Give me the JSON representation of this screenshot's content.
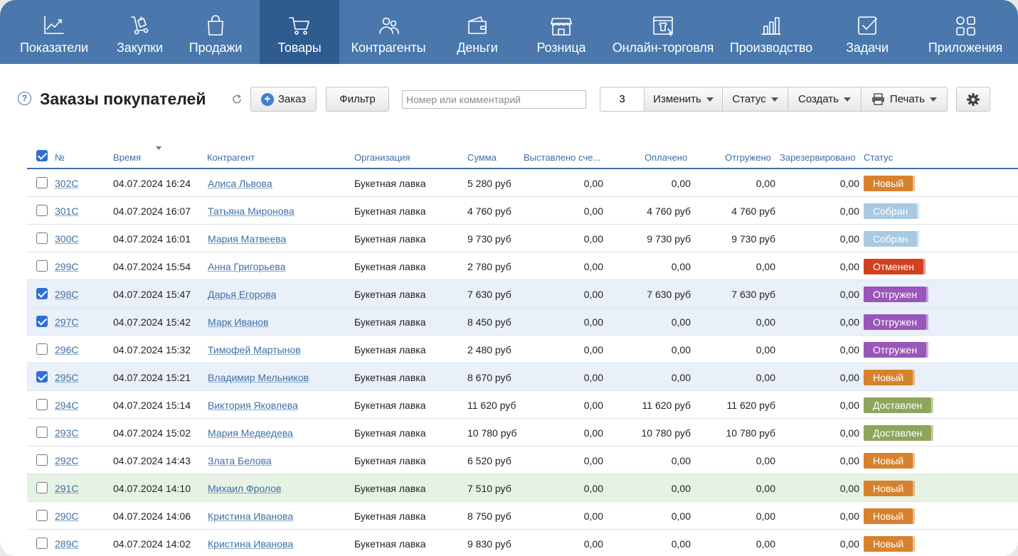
{
  "nav": [
    {
      "label": "Показатели",
      "icon": "chart-line-icon",
      "width": 152
    },
    {
      "label": "Закупки",
      "icon": "cart-dolly-icon",
      "width": 89
    },
    {
      "label": "Продажи",
      "icon": "shopping-bag-icon",
      "width": 124
    },
    {
      "label": "Товары",
      "icon": "shopping-cart-icon",
      "width": 112,
      "active": true
    },
    {
      "label": "Контрагенты",
      "icon": "people-icon",
      "width": 138
    },
    {
      "label": "Деньги",
      "icon": "wallet-icon",
      "width": 112
    },
    {
      "label": "Розница",
      "icon": "store-icon",
      "width": 124
    },
    {
      "label": "Онлайн-торговля",
      "icon": "online-shop-icon",
      "width": 162
    },
    {
      "label": "Производство",
      "icon": "bar-chart-icon",
      "width": 142
    },
    {
      "label": "Задачи",
      "icon": "checkbox-task-icon",
      "width": 128
    },
    {
      "label": "Приложения",
      "icon": "apps-grid-icon",
      "width": 148
    }
  ],
  "toolbar": {
    "title": "Заказы покупателей",
    "order_btn": "Заказ",
    "filter_btn": "Фильтр",
    "search_placeholder": "Номер или комментарий",
    "selected_count": "3",
    "edit_btn": "Изменить",
    "status_btn": "Статус",
    "create_btn": "Создать",
    "print_btn": "Печать"
  },
  "columns": {
    "num": "№",
    "time": "Время",
    "counterparty": "Контрагент",
    "organization": "Организация",
    "sum": "Сумма",
    "invoiced": "Выставлено сче...",
    "paid": "Оплачено",
    "shipped": "Отгружено",
    "reserved": "Зарезервировано",
    "status": "Статус"
  },
  "status_colors": {
    "Новый": "#d8812c",
    "Собран": "#a7c9e2",
    "Отменен": "#d2401f",
    "Отгружен": "#9a56b8",
    "Доставлен": "#8ea55d"
  },
  "rows": [
    {
      "num": "302C",
      "time": "04.07.2024 16:24",
      "counterparty": "Алиса Львова",
      "org": "Букетная лавка",
      "sum": "5 280 руб",
      "invoiced": "0,00",
      "paid": "0,00",
      "shipped": "0,00",
      "reserved": "0,00",
      "status": "Новый",
      "checked": false
    },
    {
      "num": "301C",
      "time": "04.07.2024 16:07",
      "counterparty": "Татьяна Миронова",
      "org": "Букетная лавка",
      "sum": "4 760 руб",
      "invoiced": "0,00",
      "paid": "4 760 руб",
      "shipped": "4 760 руб",
      "reserved": "0,00",
      "status": "Собран",
      "checked": false
    },
    {
      "num": "300C",
      "time": "04.07.2024 16:01",
      "counterparty": "Мария Матвеева",
      "org": "Букетная лавка",
      "sum": "9 730 руб",
      "invoiced": "0,00",
      "paid": "9 730 руб",
      "shipped": "9 730 руб",
      "reserved": "0,00",
      "status": "Собран",
      "checked": false
    },
    {
      "num": "299C",
      "time": "04.07.2024 15:54",
      "counterparty": "Анна Григорьева",
      "org": "Букетная лавка",
      "sum": "2 780 руб",
      "invoiced": "0,00",
      "paid": "0,00",
      "shipped": "0,00",
      "reserved": "0,00",
      "status": "Отменен",
      "checked": false
    },
    {
      "num": "298C",
      "time": "04.07.2024 15:47",
      "counterparty": "Дарья Егорова",
      "org": "Букетная лавка",
      "sum": "7 630 руб",
      "invoiced": "0,00",
      "paid": "7 630 руб",
      "shipped": "7 630 руб",
      "reserved": "0,00",
      "status": "Отгружен",
      "checked": true
    },
    {
      "num": "297C",
      "time": "04.07.2024 15:42",
      "counterparty": "Марк Иванов",
      "org": "Букетная лавка",
      "sum": "8 450 руб",
      "invoiced": "0,00",
      "paid": "0,00",
      "shipped": "0,00",
      "reserved": "0,00",
      "status": "Отгружен",
      "checked": true
    },
    {
      "num": "296C",
      "time": "04.07.2024 15:32",
      "counterparty": "Тимофей Мартынов",
      "org": "Букетная лавка",
      "sum": "2 480 руб",
      "invoiced": "0,00",
      "paid": "0,00",
      "shipped": "0,00",
      "reserved": "0,00",
      "status": "Отгружен",
      "checked": false
    },
    {
      "num": "295C",
      "time": "04.07.2024 15:21",
      "counterparty": "Владимир Мельников",
      "org": "Букетная лавка",
      "sum": "8 670 руб",
      "invoiced": "0,00",
      "paid": "0,00",
      "shipped": "0,00",
      "reserved": "0,00",
      "status": "Новый",
      "checked": true
    },
    {
      "num": "294C",
      "time": "04.07.2024 15:14",
      "counterparty": "Виктория Яковлева",
      "org": "Букетная лавка",
      "sum": "11 620 руб",
      "invoiced": "0,00",
      "paid": "11 620 руб",
      "shipped": "11 620 руб",
      "reserved": "0,00",
      "status": "Доставлен",
      "checked": false
    },
    {
      "num": "293C",
      "time": "04.07.2024 15:02",
      "counterparty": "Мария Медведева",
      "org": "Букетная лавка",
      "sum": "10 780 руб",
      "invoiced": "0,00",
      "paid": "10 780 руб",
      "shipped": "10 780 руб",
      "reserved": "0,00",
      "status": "Доставлен",
      "checked": false
    },
    {
      "num": "292C",
      "time": "04.07.2024 14:43",
      "counterparty": "Злата Белова",
      "org": "Букетная лавка",
      "sum": "6 520 руб",
      "invoiced": "0,00",
      "paid": "0,00",
      "shipped": "0,00",
      "reserved": "0,00",
      "status": "Новый",
      "checked": false
    },
    {
      "num": "291C",
      "time": "04.07.2024 14:10",
      "counterparty": "Михаил Фролов",
      "org": "Букетная лавка",
      "sum": "7 510 руб",
      "invoiced": "0,00",
      "paid": "0,00",
      "shipped": "0,00",
      "reserved": "0,00",
      "status": "Новый",
      "checked": false,
      "hover": true
    },
    {
      "num": "290C",
      "time": "04.07.2024 14:06",
      "counterparty": "Кристина Иванова",
      "org": "Букетная лавка",
      "sum": "8 750 руб",
      "invoiced": "0,00",
      "paid": "0,00",
      "shipped": "0,00",
      "reserved": "0,00",
      "status": "Новый",
      "checked": false
    },
    {
      "num": "289C",
      "time": "04.07.2024 14:02",
      "counterparty": "Кристина Иванова",
      "org": "Букетная лавка",
      "sum": "9 830 руб",
      "invoiced": "0,00",
      "paid": "0,00",
      "shipped": "0,00",
      "reserved": "0,00",
      "status": "Новый",
      "checked": false
    }
  ]
}
